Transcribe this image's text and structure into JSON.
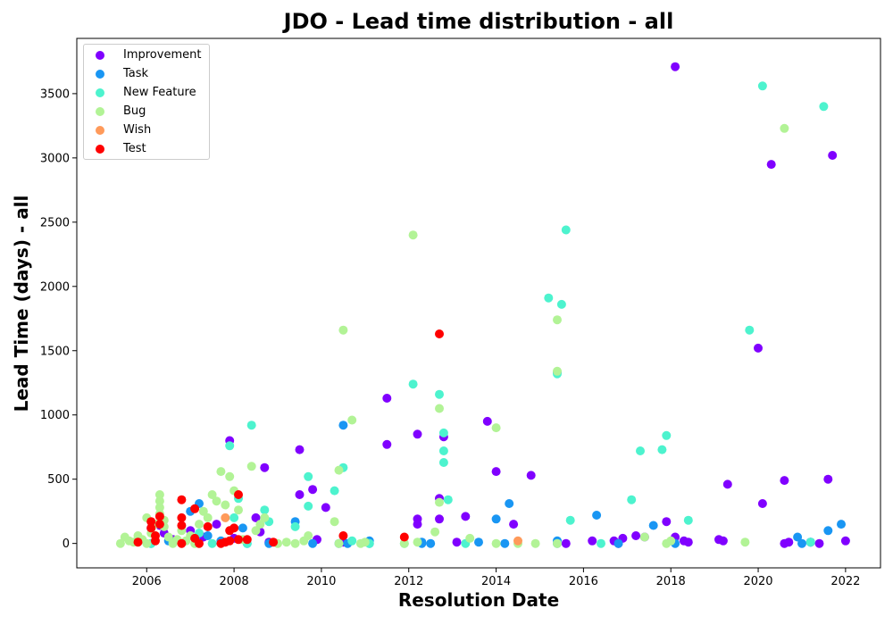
{
  "chart_data": {
    "type": "scatter",
    "title": "JDO - Lead time distribution - all",
    "xlabel": "Resolution Date",
    "ylabel": "Lead Time (days) - all",
    "xlim": [
      2004.4,
      2022.8
    ],
    "ylim": [
      -190,
      3930
    ],
    "xticks": [
      "2006",
      "2008",
      "2010",
      "2012",
      "2014",
      "2016",
      "2018",
      "2020",
      "2022"
    ],
    "yticks": [
      "0",
      "500",
      "1000",
      "1500",
      "2000",
      "2500",
      "3000",
      "3500"
    ],
    "legend_position": "top-left",
    "grid": false,
    "series": [
      {
        "name": "Improvement",
        "color": "#8000ff",
        "points": [
          [
            2006.1,
            120
          ],
          [
            2006.3,
            140
          ],
          [
            2006.4,
            80
          ],
          [
            2006.6,
            30
          ],
          [
            2007.0,
            100
          ],
          [
            2007.3,
            50
          ],
          [
            2007.6,
            150
          ],
          [
            2007.9,
            800
          ],
          [
            2008.0,
            40
          ],
          [
            2008.5,
            200
          ],
          [
            2008.6,
            90
          ],
          [
            2008.7,
            590
          ],
          [
            2008.8,
            10
          ],
          [
            2009.5,
            730
          ],
          [
            2009.5,
            380
          ],
          [
            2009.8,
            420
          ],
          [
            2009.9,
            30
          ],
          [
            2010.1,
            280
          ],
          [
            2010.5,
            10
          ],
          [
            2011.5,
            1130
          ],
          [
            2011.5,
            770
          ],
          [
            2012.2,
            850
          ],
          [
            2012.2,
            190
          ],
          [
            2012.2,
            150
          ],
          [
            2012.7,
            350
          ],
          [
            2012.7,
            190
          ],
          [
            2012.8,
            830
          ],
          [
            2013.1,
            10
          ],
          [
            2013.3,
            210
          ],
          [
            2013.8,
            950
          ],
          [
            2014.0,
            560
          ],
          [
            2014.4,
            150
          ],
          [
            2014.8,
            530
          ],
          [
            2015.6,
            0
          ],
          [
            2016.2,
            20
          ],
          [
            2016.7,
            20
          ],
          [
            2016.8,
            0
          ],
          [
            2016.9,
            40
          ],
          [
            2017.2,
            60
          ],
          [
            2017.4,
            50
          ],
          [
            2017.9,
            170
          ],
          [
            2018.1,
            3710
          ],
          [
            2018.1,
            50
          ],
          [
            2018.3,
            20
          ],
          [
            2018.4,
            10
          ],
          [
            2019.1,
            30
          ],
          [
            2019.2,
            20
          ],
          [
            2019.3,
            460
          ],
          [
            2020.0,
            1520
          ],
          [
            2020.1,
            310
          ],
          [
            2020.3,
            2950
          ],
          [
            2020.6,
            490
          ],
          [
            2020.6,
            0
          ],
          [
            2020.7,
            10
          ],
          [
            2021.2,
            10
          ],
          [
            2021.4,
            0
          ],
          [
            2021.6,
            500
          ],
          [
            2021.7,
            3020
          ],
          [
            2022.0,
            20
          ]
        ]
      },
      {
        "name": "Task",
        "color": "#1996f3",
        "points": [
          [
            2006.1,
            0
          ],
          [
            2006.5,
            20
          ],
          [
            2007.0,
            250
          ],
          [
            2007.2,
            310
          ],
          [
            2007.4,
            60
          ],
          [
            2007.7,
            20
          ],
          [
            2008.2,
            120
          ],
          [
            2008.3,
            0
          ],
          [
            2008.8,
            0
          ],
          [
            2009.4,
            170
          ],
          [
            2009.8,
            0
          ],
          [
            2010.4,
            0
          ],
          [
            2010.5,
            920
          ],
          [
            2010.6,
            0
          ],
          [
            2011.1,
            0
          ],
          [
            2011.1,
            20
          ],
          [
            2012.3,
            10
          ],
          [
            2012.3,
            0
          ],
          [
            2012.5,
            0
          ],
          [
            2013.6,
            10
          ],
          [
            2014.0,
            190
          ],
          [
            2014.2,
            0
          ],
          [
            2014.3,
            310
          ],
          [
            2015.4,
            1330
          ],
          [
            2015.4,
            20
          ],
          [
            2015.4,
            0
          ],
          [
            2016.3,
            220
          ],
          [
            2016.8,
            0
          ],
          [
            2017.6,
            140
          ],
          [
            2018.1,
            0
          ],
          [
            2020.9,
            50
          ],
          [
            2021.0,
            0
          ],
          [
            2021.2,
            10
          ],
          [
            2021.6,
            100
          ],
          [
            2021.9,
            150
          ]
        ]
      },
      {
        "name": "New Feature",
        "color": "#4df3ce",
        "points": [
          [
            2006.1,
            0
          ],
          [
            2006.6,
            10
          ],
          [
            2007.2,
            80
          ],
          [
            2007.5,
            0
          ],
          [
            2007.9,
            760
          ],
          [
            2008.0,
            200
          ],
          [
            2008.1,
            350
          ],
          [
            2008.3,
            0
          ],
          [
            2008.4,
            920
          ],
          [
            2008.7,
            260
          ],
          [
            2008.8,
            170
          ],
          [
            2009.4,
            130
          ],
          [
            2009.7,
            520
          ],
          [
            2009.7,
            290
          ],
          [
            2010.3,
            410
          ],
          [
            2010.5,
            590
          ],
          [
            2010.7,
            20
          ],
          [
            2011.1,
            0
          ],
          [
            2011.9,
            0
          ],
          [
            2012.1,
            1240
          ],
          [
            2012.7,
            1160
          ],
          [
            2012.8,
            860
          ],
          [
            2012.8,
            720
          ],
          [
            2012.8,
            630
          ],
          [
            2012.9,
            340
          ],
          [
            2013.3,
            0
          ],
          [
            2015.2,
            1910
          ],
          [
            2015.4,
            1320
          ],
          [
            2015.5,
            1860
          ],
          [
            2015.6,
            2440
          ],
          [
            2015.7,
            180
          ],
          [
            2016.4,
            0
          ],
          [
            2017.1,
            340
          ],
          [
            2017.3,
            720
          ],
          [
            2017.8,
            730
          ],
          [
            2017.9,
            840
          ],
          [
            2018.4,
            180
          ],
          [
            2019.8,
            1660
          ],
          [
            2020.1,
            3560
          ],
          [
            2021.2,
            10
          ],
          [
            2021.5,
            3400
          ]
        ]
      },
      {
        "name": "Bug",
        "color": "#b2f396",
        "points": [
          [
            2005.4,
            0
          ],
          [
            2005.5,
            50
          ],
          [
            2005.6,
            20
          ],
          [
            2005.7,
            10
          ],
          [
            2005.8,
            60
          ],
          [
            2005.9,
            30
          ],
          [
            2006.0,
            200
          ],
          [
            2006.0,
            0
          ],
          [
            2006.1,
            80
          ],
          [
            2006.2,
            150
          ],
          [
            2006.3,
            380
          ],
          [
            2006.3,
            330
          ],
          [
            2006.3,
            280
          ],
          [
            2006.3,
            230
          ],
          [
            2006.4,
            180
          ],
          [
            2006.4,
            130
          ],
          [
            2006.5,
            50
          ],
          [
            2006.6,
            0
          ],
          [
            2006.7,
            30
          ],
          [
            2006.8,
            100
          ],
          [
            2006.9,
            20
          ],
          [
            2007.0,
            60
          ],
          [
            2007.1,
            0
          ],
          [
            2007.2,
            150
          ],
          [
            2007.3,
            250
          ],
          [
            2007.4,
            200
          ],
          [
            2007.5,
            380
          ],
          [
            2007.6,
            330
          ],
          [
            2007.7,
            560
          ],
          [
            2007.8,
            300
          ],
          [
            2007.9,
            520
          ],
          [
            2008.0,
            410
          ],
          [
            2008.1,
            260
          ],
          [
            2008.2,
            30
          ],
          [
            2008.4,
            600
          ],
          [
            2008.5,
            100
          ],
          [
            2008.6,
            150
          ],
          [
            2008.7,
            200
          ],
          [
            2009.0,
            0
          ],
          [
            2009.2,
            10
          ],
          [
            2009.4,
            0
          ],
          [
            2009.6,
            20
          ],
          [
            2009.7,
            60
          ],
          [
            2010.3,
            170
          ],
          [
            2010.4,
            570
          ],
          [
            2010.4,
            0
          ],
          [
            2010.5,
            1660
          ],
          [
            2010.7,
            960
          ],
          [
            2010.9,
            0
          ],
          [
            2011.0,
            10
          ],
          [
            2011.9,
            0
          ],
          [
            2012.1,
            2400
          ],
          [
            2012.2,
            10
          ],
          [
            2012.6,
            90
          ],
          [
            2012.7,
            1050
          ],
          [
            2012.7,
            320
          ],
          [
            2013.4,
            40
          ],
          [
            2014.0,
            900
          ],
          [
            2014.0,
            0
          ],
          [
            2014.5,
            0
          ],
          [
            2014.9,
            0
          ],
          [
            2015.4,
            1740
          ],
          [
            2015.4,
            1340
          ],
          [
            2015.4,
            0
          ],
          [
            2017.4,
            50
          ],
          [
            2017.9,
            0
          ],
          [
            2018.0,
            20
          ],
          [
            2019.7,
            10
          ],
          [
            2020.6,
            3230
          ]
        ]
      },
      {
        "name": "Wish",
        "color": "#ff9a5a",
        "points": [
          [
            2007.8,
            200
          ],
          [
            2014.5,
            20
          ]
        ]
      },
      {
        "name": "Test",
        "color": "#ff0000",
        "points": [
          [
            2005.8,
            10
          ],
          [
            2006.1,
            170
          ],
          [
            2006.1,
            120
          ],
          [
            2006.2,
            60
          ],
          [
            2006.2,
            20
          ],
          [
            2006.3,
            210
          ],
          [
            2006.3,
            150
          ],
          [
            2006.8,
            340
          ],
          [
            2006.8,
            200
          ],
          [
            2006.8,
            0
          ],
          [
            2006.8,
            140
          ],
          [
            2007.1,
            270
          ],
          [
            2007.1,
            40
          ],
          [
            2007.2,
            0
          ],
          [
            2007.4,
            130
          ],
          [
            2007.7,
            0
          ],
          [
            2007.8,
            10
          ],
          [
            2007.9,
            20
          ],
          [
            2007.9,
            100
          ],
          [
            2008.0,
            120
          ],
          [
            2008.1,
            380
          ],
          [
            2008.1,
            30
          ],
          [
            2008.3,
            30
          ],
          [
            2008.9,
            10
          ],
          [
            2010.5,
            60
          ],
          [
            2011.9,
            50
          ],
          [
            2012.7,
            1630
          ]
        ]
      }
    ]
  }
}
